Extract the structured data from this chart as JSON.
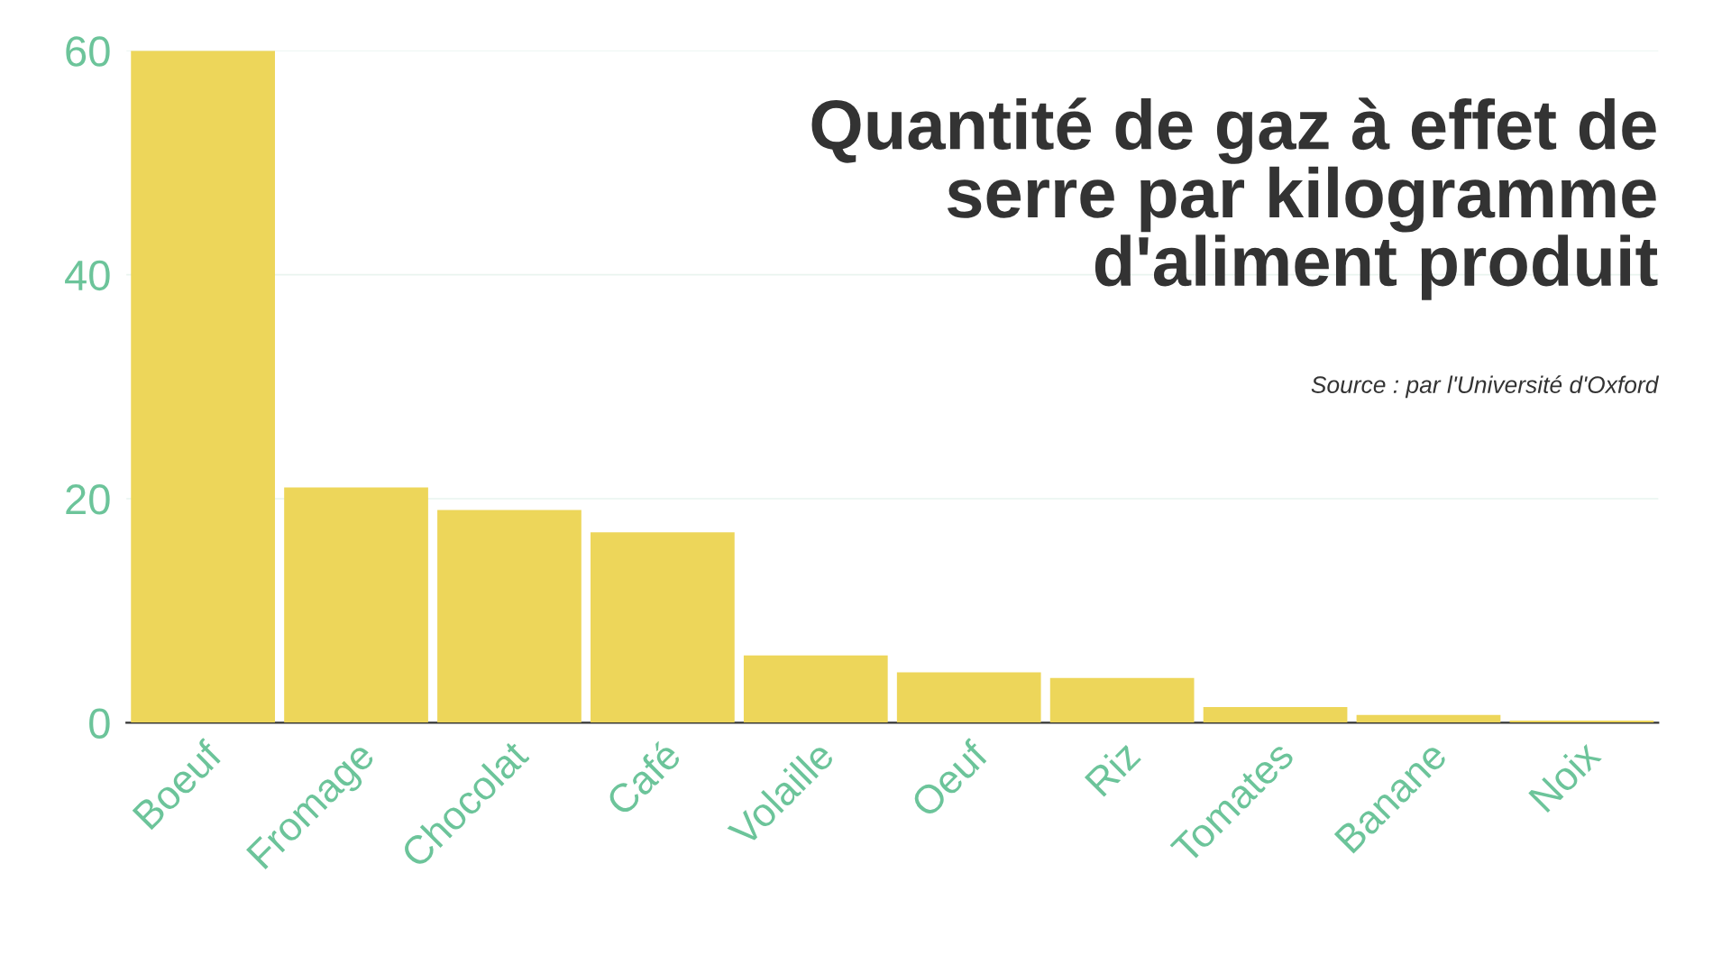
{
  "chart_data": {
    "type": "bar",
    "title": "Quantité de gaz à effet de\nserre par kilogramme\nd'aliment produit",
    "annotations": [
      "Source : par l'Université d'Oxford"
    ],
    "categories": [
      "Boeuf",
      "Fromage",
      "Chocolat",
      "Café",
      "Volaille",
      "Oeuf",
      "Riz",
      "Tomates",
      "Banane",
      "Noix"
    ],
    "values": [
      60,
      21,
      19,
      17,
      6,
      4.5,
      4,
      1.4,
      0.7,
      0.2
    ],
    "color": "#edd65a",
    "ylim": [
      0,
      60
    ],
    "yticks": [
      0,
      20,
      40,
      60
    ],
    "grid": "y"
  }
}
